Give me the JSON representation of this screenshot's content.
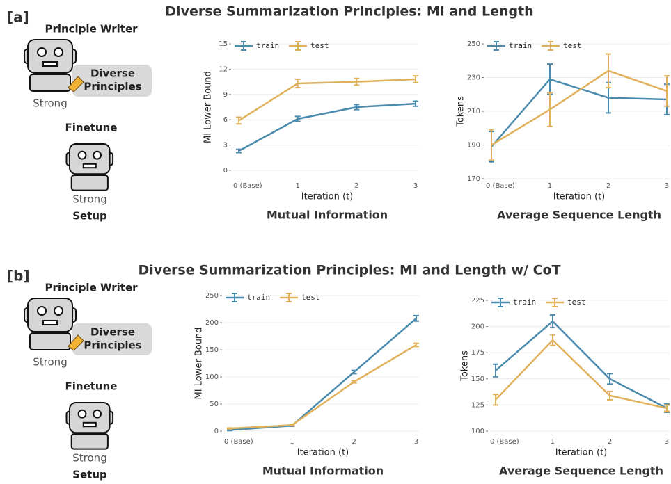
{
  "panels": [
    {
      "label": "[a]",
      "title": "Diverse Summarization Principles: MI and Length",
      "setup": {
        "writer": "Principle Writer",
        "bubble_line1": "Diverse",
        "bubble_line2": "Principles",
        "writer_strength": "Strong",
        "finetune": "Finetune",
        "finetune_strength": "Strong",
        "caption": "Setup"
      }
    },
    {
      "label": "[b]",
      "title": "Diverse Summarization Principles: MI and Length w/ CoT",
      "setup": {
        "writer": "Principle Writer",
        "bubble_line1": "Diverse",
        "bubble_line2": "Principles",
        "writer_strength": "Strong",
        "finetune": "Finetune",
        "finetune_strength": "Strong",
        "caption": "Setup"
      }
    }
  ],
  "chart_data": [
    {
      "type": "line",
      "title": "Mutual Information",
      "x_label": "Iteration (t)",
      "y_label": "MI Lower Bound",
      "categories": [
        "0 (Base)",
        "1",
        "2",
        "3"
      ],
      "ylim": [
        0,
        15
      ],
      "yticks": [
        0,
        3,
        6,
        9,
        12,
        15
      ],
      "grid": true,
      "legend": "top-left",
      "series": [
        {
          "name": "train",
          "color": "#4a8bad",
          "values": [
            2.3,
            6.1,
            7.5,
            7.9
          ],
          "errors": [
            0.2,
            0.3,
            0.3,
            0.3
          ]
        },
        {
          "name": "test",
          "color": "#e0b15a",
          "values": [
            5.9,
            10.3,
            10.5,
            10.8
          ],
          "errors": [
            0.4,
            0.5,
            0.4,
            0.4
          ]
        }
      ]
    },
    {
      "type": "line",
      "title": "Average Sequence Length",
      "x_label": "Iteration (t)",
      "y_label": "Tokens",
      "categories": [
        "0 (Base)",
        "1",
        "2",
        "3"
      ],
      "ylim": [
        170,
        250
      ],
      "yticks": [
        170,
        190,
        210,
        230,
        250
      ],
      "grid": true,
      "legend": "top-left",
      "series": [
        {
          "name": "train",
          "color": "#4a8bad",
          "values": [
            189,
            229,
            218,
            217
          ],
          "errors": [
            9,
            9,
            9,
            9
          ]
        },
        {
          "name": "test",
          "color": "#e0b15a",
          "values": [
            190,
            211,
            234,
            222
          ],
          "errors": [
            9,
            10,
            10,
            9
          ]
        }
      ]
    },
    {
      "type": "line",
      "title": "Mutual Information",
      "x_label": "Iteration (t)",
      "y_label": "MI Lower Bound",
      "categories": [
        "0 (Base)",
        "1",
        "2",
        "3"
      ],
      "ylim": [
        0,
        250
      ],
      "yticks": [
        0,
        50,
        100,
        150,
        200,
        250
      ],
      "grid": true,
      "legend": "top-left",
      "series": [
        {
          "name": "train",
          "color": "#4a8bad",
          "values": [
            2,
            10,
            109,
            208
          ],
          "errors": [
            1,
            1,
            3,
            5
          ]
        },
        {
          "name": "test",
          "color": "#e0b15a",
          "values": [
            5,
            11,
            91,
            159
          ],
          "errors": [
            1,
            1,
            2,
            3
          ]
        }
      ]
    },
    {
      "type": "line",
      "title": "Average Sequence Length",
      "x_label": "Iteration (t)",
      "y_label": "Tokens",
      "categories": [
        "0 (Base)",
        "1",
        "2",
        "3"
      ],
      "ylim": [
        100,
        225
      ],
      "yticks": [
        100,
        125,
        150,
        175,
        200,
        225
      ],
      "grid": true,
      "legend": "top-left",
      "series": [
        {
          "name": "train",
          "color": "#4a8bad",
          "values": [
            158,
            205,
            150,
            122
          ],
          "errors": [
            6,
            6,
            5,
            4
          ]
        },
        {
          "name": "test",
          "color": "#e0b15a",
          "values": [
            130,
            187,
            134,
            122
          ],
          "errors": [
            5,
            5,
            4,
            3
          ]
        }
      ]
    }
  ]
}
